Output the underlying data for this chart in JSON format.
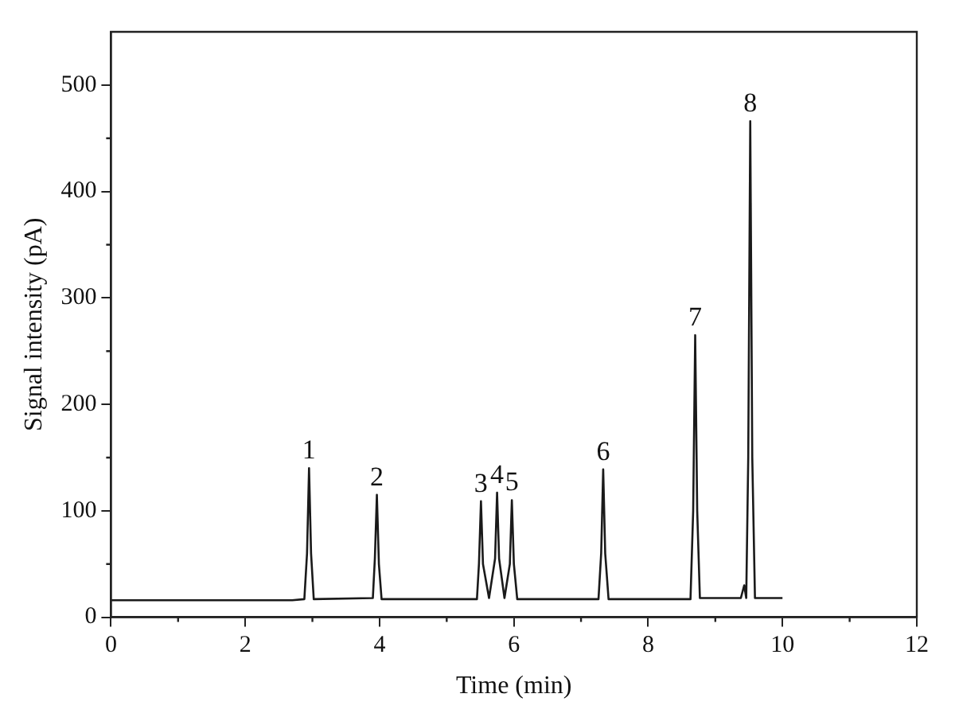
{
  "chart_data": {
    "type": "line",
    "xlabel": "Time (min)",
    "ylabel": "Signal intensity (pA)",
    "x": [
      0,
      2.7,
      2.88,
      2.92,
      2.95,
      2.98,
      3.02,
      3.9,
      3.93,
      3.96,
      3.99,
      4.03,
      5.45,
      5.48,
      5.51,
      5.54,
      5.63,
      5.72,
      5.75,
      5.78,
      5.86,
      5.94,
      5.97,
      6.0,
      6.05,
      7.26,
      7.3,
      7.33,
      7.36,
      7.41,
      8.3,
      8.63,
      8.67,
      8.7,
      8.73,
      8.77,
      9.38,
      9.43,
      9.46,
      9.49,
      9.52,
      9.55,
      9.59,
      10.0
    ],
    "series": [
      {
        "color": "#1a1a1a",
        "values": [
          16,
          16,
          17,
          60,
          140,
          60,
          17,
          18,
          55,
          115,
          50,
          17,
          17,
          50,
          109,
          50,
          18,
          55,
          117,
          55,
          18,
          50,
          110,
          50,
          17,
          17,
          60,
          139,
          60,
          17,
          17,
          17,
          100,
          265,
          100,
          18,
          18,
          30,
          18,
          150,
          466,
          150,
          18,
          18
        ]
      }
    ],
    "xlim": [
      0,
      12
    ],
    "xticks": [
      0,
      2,
      4,
      6,
      8,
      10,
      12
    ],
    "ylim": [
      0,
      550
    ],
    "yticks": [
      0,
      100,
      200,
      300,
      400,
      500
    ],
    "marker": "none",
    "line_style": "solid",
    "legend": false,
    "grid": false,
    "annotations": [
      {
        "text": "1",
        "x": 2.95,
        "y": 140
      },
      {
        "text": "2",
        "x": 3.96,
        "y": 115
      },
      {
        "text": "3",
        "x": 5.51,
        "y": 109
      },
      {
        "text": "4",
        "x": 5.75,
        "y": 117
      },
      {
        "text": "5",
        "x": 5.97,
        "y": 110
      },
      {
        "text": "6",
        "x": 7.33,
        "y": 139
      },
      {
        "text": "7",
        "x": 8.7,
        "y": 265
      },
      {
        "text": "8",
        "x": 9.52,
        "y": 466
      }
    ]
  }
}
